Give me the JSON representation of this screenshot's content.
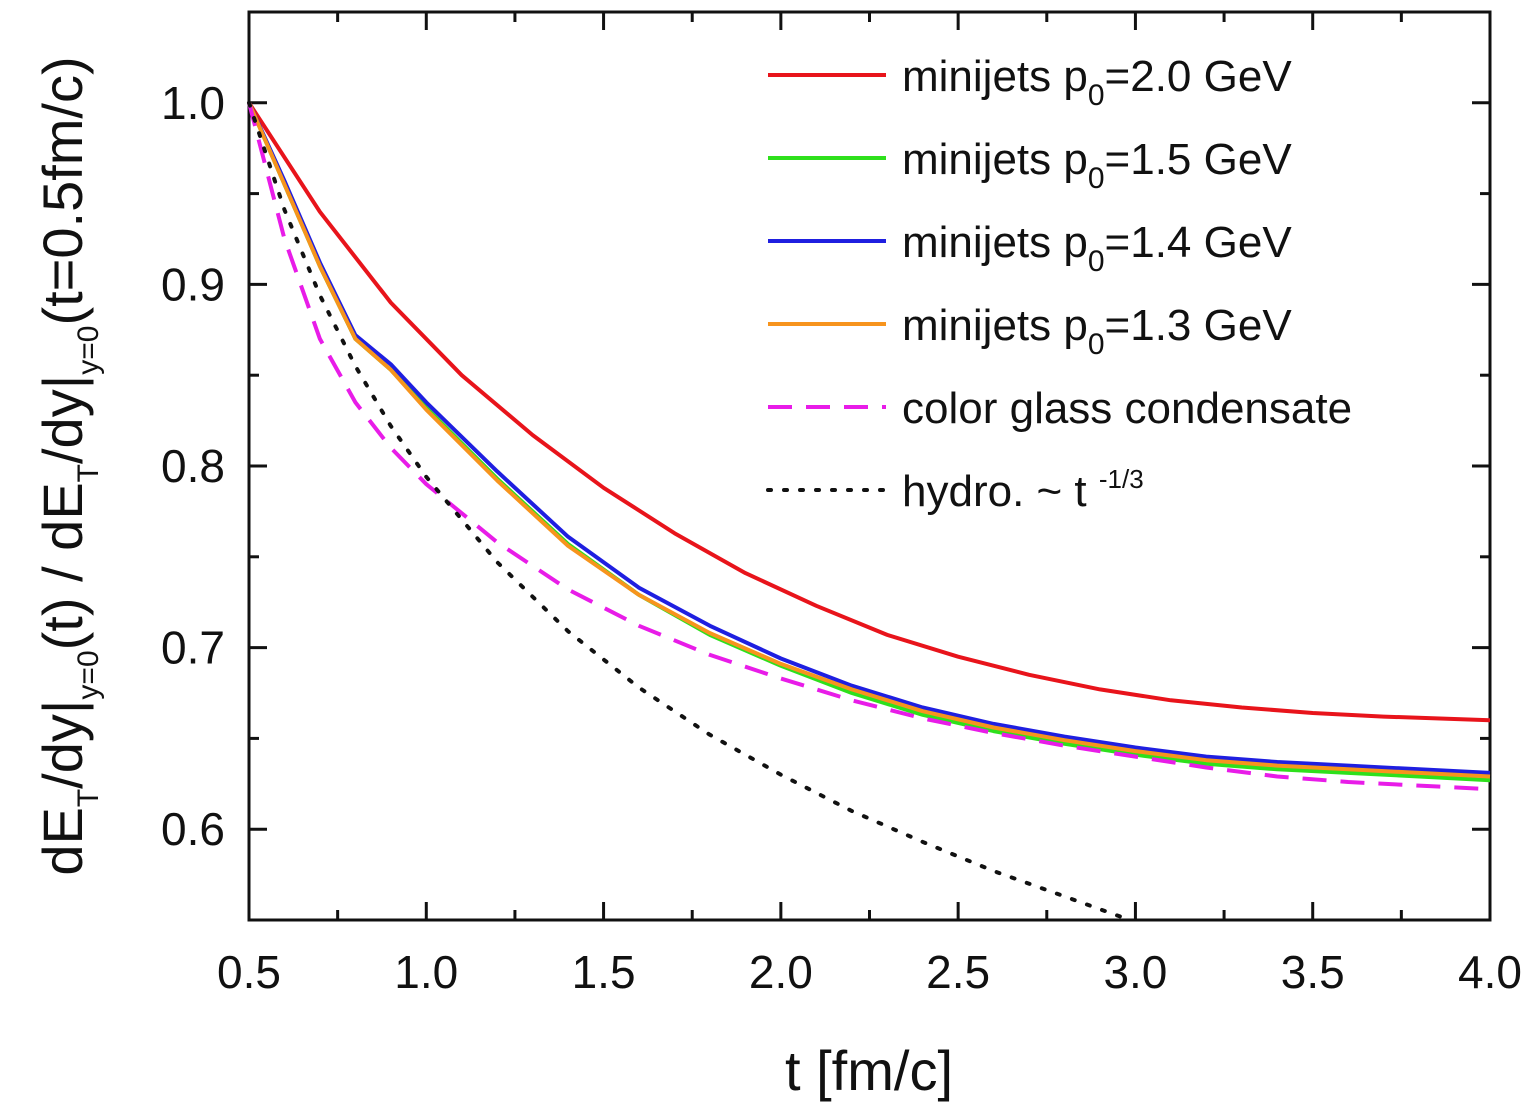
{
  "chart_data": {
    "type": "line",
    "xlabel": "t [fm/c]",
    "ylabel": {
      "p1": "dE",
      "s1": "T",
      "p2": "/dy|",
      "s2": "y=0",
      "p3": "(t) / dE",
      "s3": "T",
      "p4": "/dy|",
      "s4": "y=0",
      "p5": "(t=0.5fm/c)"
    },
    "xlim": [
      0.5,
      4.0
    ],
    "ylim": [
      0.55,
      1.05
    ],
    "xticks": [
      0.5,
      1.0,
      1.5,
      2.0,
      2.5,
      3.0,
      3.5,
      4.0
    ],
    "xtick_labels": [
      "0.5",
      "1.0",
      "1.5",
      "2.0",
      "2.5",
      "3.0",
      "3.5",
      "4.0"
    ],
    "yticks": [
      0.6,
      0.7,
      0.8,
      0.9,
      1.0
    ],
    "ytick_labels": [
      "0.6",
      "0.7",
      "0.8",
      "0.9",
      "1.0"
    ],
    "grid": false,
    "legend_position": "top-right",
    "series": [
      {
        "name": "minijets p0=2.0 GeV",
        "legend": {
          "pre": "minijets p",
          "sub": "0",
          "post": "=2.0 GeV"
        },
        "color": "#e8141b",
        "dash": "solid",
        "x": [
          0.5,
          0.7,
          0.9,
          1.1,
          1.3,
          1.5,
          1.7,
          1.9,
          2.1,
          2.3,
          2.5,
          2.7,
          2.9,
          3.1,
          3.3,
          3.5,
          3.7,
          4.0
        ],
        "y": [
          1.0,
          0.94,
          0.89,
          0.85,
          0.817,
          0.788,
          0.763,
          0.741,
          0.723,
          0.707,
          0.695,
          0.685,
          0.677,
          0.671,
          0.667,
          0.664,
          0.662,
          0.66
        ]
      },
      {
        "name": "minijets p0=1.5 GeV",
        "legend": {
          "pre": "minijets p",
          "sub": "0",
          "post": "=1.5 GeV"
        },
        "color": "#2ee01c",
        "dash": "solid",
        "x": [
          0.5,
          0.6,
          0.7,
          0.8,
          0.9,
          1.0,
          1.2,
          1.4,
          1.6,
          1.8,
          2.0,
          2.2,
          2.4,
          2.6,
          2.8,
          3.0,
          3.2,
          3.4,
          3.6,
          3.8,
          4.0
        ],
        "y": [
          1.0,
          0.955,
          0.91,
          0.87,
          0.853,
          0.832,
          0.793,
          0.757,
          0.729,
          0.707,
          0.69,
          0.675,
          0.663,
          0.654,
          0.647,
          0.641,
          0.636,
          0.633,
          0.631,
          0.629,
          0.627
        ]
      },
      {
        "name": "minijets p0=1.4 GeV",
        "legend": {
          "pre": "minijets p",
          "sub": "0",
          "post": "=1.4 GeV"
        },
        "color": "#1f1fe0",
        "dash": "solid",
        "x": [
          0.5,
          0.6,
          0.7,
          0.8,
          0.9,
          1.0,
          1.2,
          1.4,
          1.6,
          1.8,
          2.0,
          2.2,
          2.4,
          2.6,
          2.8,
          3.0,
          3.2,
          3.4,
          3.6,
          3.8,
          4.0
        ],
        "y": [
          1.0,
          0.957,
          0.912,
          0.872,
          0.856,
          0.835,
          0.797,
          0.761,
          0.733,
          0.712,
          0.694,
          0.679,
          0.667,
          0.658,
          0.651,
          0.645,
          0.64,
          0.637,
          0.635,
          0.633,
          0.631
        ]
      },
      {
        "name": "minijets p0=1.3 GeV",
        "legend": {
          "pre": "minijets p",
          "sub": "0",
          "post": "=1.3 GeV"
        },
        "color": "#f7941d",
        "dash": "solid",
        "x": [
          0.5,
          0.6,
          0.7,
          0.8,
          0.9,
          1.0,
          1.2,
          1.4,
          1.6,
          1.8,
          2.0,
          2.2,
          2.4,
          2.6,
          2.8,
          3.0,
          3.2,
          3.4,
          3.6,
          3.8,
          4.0
        ],
        "y": [
          1.0,
          0.955,
          0.91,
          0.87,
          0.853,
          0.831,
          0.792,
          0.756,
          0.729,
          0.708,
          0.691,
          0.677,
          0.665,
          0.656,
          0.649,
          0.643,
          0.638,
          0.635,
          0.633,
          0.631,
          0.629
        ]
      },
      {
        "name": "color glass condensate",
        "legend": {
          "pre": "color glass condensate",
          "sub": "",
          "post": ""
        },
        "color": "#e81ce8",
        "dash": "dashed",
        "x": [
          0.5,
          0.6,
          0.7,
          0.8,
          0.9,
          1.0,
          1.2,
          1.4,
          1.6,
          1.8,
          2.0,
          2.2,
          2.4,
          2.6,
          2.8,
          3.0,
          3.2,
          3.4,
          3.6,
          3.8,
          4.0
        ],
        "y": [
          1.0,
          0.925,
          0.87,
          0.835,
          0.81,
          0.79,
          0.758,
          0.732,
          0.712,
          0.696,
          0.683,
          0.671,
          0.661,
          0.653,
          0.646,
          0.64,
          0.634,
          0.629,
          0.626,
          0.624,
          0.622
        ]
      },
      {
        "name": "hydro. ~ t^-1/3",
        "legend": {
          "pre": "hydro. ~ t ",
          "sup": "-1/3",
          "sub": "",
          "post": ""
        },
        "color": "#111111",
        "dash": "dotted",
        "x": [
          0.5,
          0.6,
          0.7,
          0.8,
          0.9,
          1.0,
          1.2,
          1.4,
          1.6,
          1.8,
          2.0,
          2.2,
          2.4,
          2.6,
          2.8,
          2.97
        ],
        "y": [
          1.0,
          0.941,
          0.894,
          0.855,
          0.822,
          0.794,
          0.747,
          0.709,
          0.678,
          0.652,
          0.63,
          0.61,
          0.593,
          0.577,
          0.563,
          0.551
        ]
      }
    ]
  }
}
